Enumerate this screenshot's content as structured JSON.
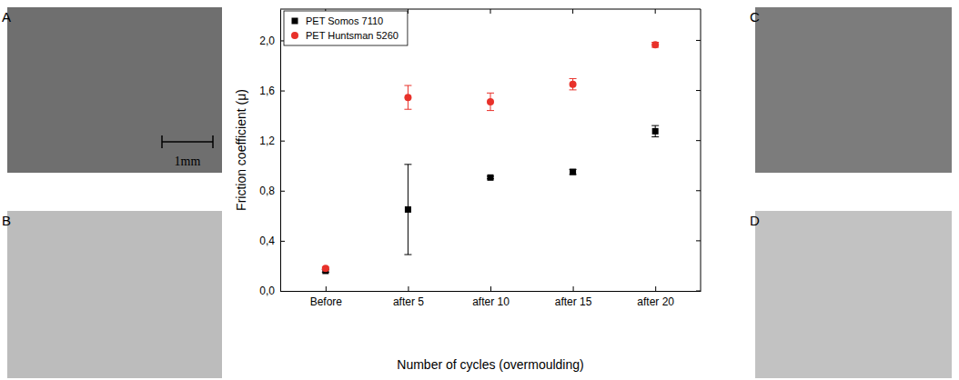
{
  "chart_data": {
    "type": "scatter",
    "categories": [
      "Before",
      "after 5",
      "after 10",
      "after 15",
      "after 20"
    ],
    "x_label": "Number of cycles (overmoulding)",
    "y_label": "Friction coefficient (μ)",
    "ylim": [
      0,
      2.25
    ],
    "yticks": [
      {
        "value": 0,
        "label": "0,0"
      },
      {
        "value": 0.4,
        "label": "0,4"
      },
      {
        "value": 0.8,
        "label": "0,8"
      },
      {
        "value": 1.2,
        "label": "1,2"
      },
      {
        "value": 1.6,
        "label": "1,6"
      },
      {
        "value": 2.0,
        "label": "2,0"
      }
    ],
    "grid": false,
    "legend": "upper left",
    "series": [
      {
        "name": "PET Somos 7110",
        "color": "#000000",
        "marker": "square",
        "values": [
          0.16,
          0.65,
          0.905,
          0.95,
          1.275
        ],
        "errors": [
          0.01,
          0.36,
          0.01,
          0.02,
          0.045
        ]
      },
      {
        "name": "PET Huntsman 5260",
        "color": "#e8312a",
        "marker": "circle",
        "values": [
          0.18,
          1.545,
          1.51,
          1.65,
          1.965
        ],
        "errors": [
          0.01,
          0.095,
          0.07,
          0.045,
          0.02
        ]
      }
    ]
  },
  "images": [
    {
      "letter": "A",
      "scale_bar_label": "1mm"
    },
    {
      "letter": "B"
    },
    {
      "letter": "C"
    },
    {
      "letter": "D"
    }
  ]
}
